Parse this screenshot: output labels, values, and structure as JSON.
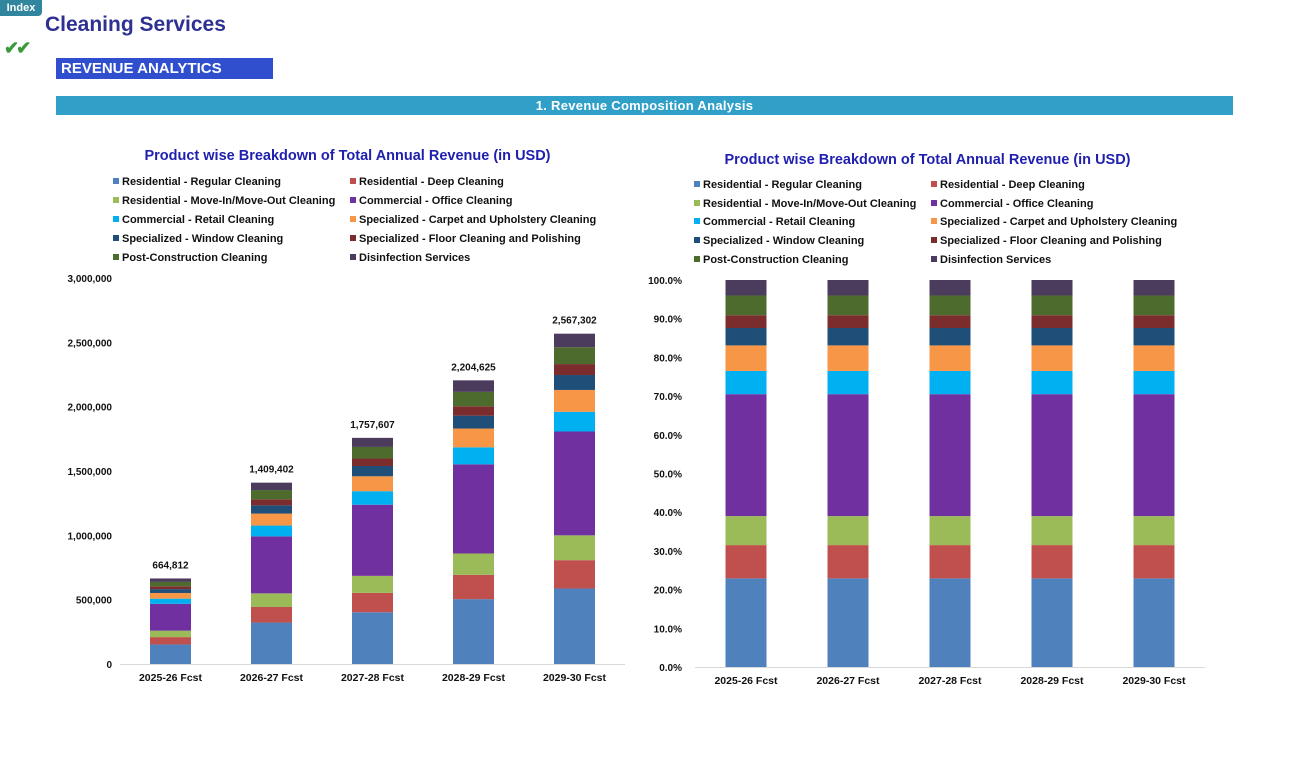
{
  "header": {
    "index_label": "Index",
    "checkmark_icon": "double-check-icon",
    "title": "Cleaning Services",
    "section": "REVENUE ANALYTICS",
    "banner": "1.  Revenue Composition Analysis"
  },
  "colors": {
    "accent": "#2e3192",
    "section_bg": "#2f4fcf",
    "banner_bg": "#31a0c9",
    "series": [
      "#4f81bd",
      "#c0504d",
      "#9bbb59",
      "#7030a0",
      "#00b0f0",
      "#f79646",
      "#1f4e79",
      "#7b2c2c",
      "#4e6b2e",
      "#4b3b5c"
    ]
  },
  "chart_data": [
    {
      "type": "bar",
      "stacked": true,
      "title": "Product wise Breakdown of Total Annual Revenue (in USD)",
      "categories": [
        "2025-26 Fcst",
        "2026-27 Fcst",
        "2027-28 Fcst",
        "2028-29 Fcst",
        "2029-30 Fcst"
      ],
      "totals": [
        664812,
        1409402,
        1757607,
        2204625,
        2567302
      ],
      "total_labels": [
        "664,812",
        "1,409,402",
        "1,757,607",
        "2,204,625",
        "2,567,302"
      ],
      "ylim": [
        0,
        3000000
      ],
      "yticks": [
        "0",
        "500,000",
        "1,000,000",
        "1,500,000",
        "2,000,000",
        "2,500,000",
        "3,000,000"
      ],
      "legend_position": "top",
      "grid": false,
      "series": [
        {
          "name": "Residential - Regular Cleaning",
          "values": [
            152000,
            322000,
            402000,
            504000,
            587000
          ]
        },
        {
          "name": "Residential - Deep Cleaning",
          "values": [
            57000,
            121000,
            151000,
            189000,
            220000
          ]
        },
        {
          "name": "Residential - Move-In/Move-Out Cleaning",
          "values": [
            50000,
            106000,
            132000,
            166000,
            193000
          ]
        },
        {
          "name": "Commercial - Office Cleaning",
          "values": [
            209000,
            443000,
            553000,
            693000,
            807000
          ]
        },
        {
          "name": "Commercial - Retail Cleaning",
          "values": [
            40000,
            84000,
            105000,
            132000,
            153000
          ]
        },
        {
          "name": "Specialized - Carpet and Upholstery Cleaning",
          "values": [
            44000,
            93000,
            116000,
            146000,
            170000
          ]
        },
        {
          "name": "Specialized - Window Cleaning",
          "values": [
            30000,
            64000,
            80000,
            100000,
            116000
          ]
        },
        {
          "name": "Specialized - Floor Cleaning and Polishing",
          "values": [
            22000,
            47000,
            58000,
            73000,
            85000
          ]
        },
        {
          "name": "Post-Construction Cleaning",
          "values": [
            34000,
            72000,
            90000,
            112000,
            131000
          ]
        },
        {
          "name": "Disinfection Services",
          "values": [
            26812,
            57402,
            70607,
            89625,
            105302
          ]
        }
      ]
    },
    {
      "type": "bar",
      "stacked": true,
      "percent": true,
      "title": "Product wise Breakdown of Total Annual Revenue (in USD)",
      "categories": [
        "2025-26 Fcst",
        "2026-27 Fcst",
        "2027-28 Fcst",
        "2028-29 Fcst",
        "2029-30 Fcst"
      ],
      "ylim": [
        0,
        100
      ],
      "yticks": [
        "0.0%",
        "10.0%",
        "20.0%",
        "30.0%",
        "40.0%",
        "50.0%",
        "60.0%",
        "70.0%",
        "80.0%",
        "90.0%",
        "100.0%"
      ],
      "legend_position": "top",
      "grid": false,
      "series": [
        {
          "name": "Residential - Regular Cleaning",
          "values": [
            22.9,
            22.9,
            22.9,
            22.9,
            22.9
          ]
        },
        {
          "name": "Residential - Deep Cleaning",
          "values": [
            8.6,
            8.6,
            8.6,
            8.6,
            8.6
          ]
        },
        {
          "name": "Residential - Move-In/Move-Out Cleaning",
          "values": [
            7.5,
            7.5,
            7.5,
            7.5,
            7.5
          ]
        },
        {
          "name": "Commercial - Office Cleaning",
          "values": [
            31.5,
            31.5,
            31.5,
            31.5,
            31.5
          ]
        },
        {
          "name": "Commercial - Retail Cleaning",
          "values": [
            6.0,
            6.0,
            6.0,
            6.0,
            6.0
          ]
        },
        {
          "name": "Specialized - Carpet and Upholstery Cleaning",
          "values": [
            6.6,
            6.6,
            6.6,
            6.6,
            6.6
          ]
        },
        {
          "name": "Specialized - Window Cleaning",
          "values": [
            4.5,
            4.5,
            4.5,
            4.5,
            4.5
          ]
        },
        {
          "name": "Specialized - Floor Cleaning and Polishing",
          "values": [
            3.3,
            3.3,
            3.3,
            3.3,
            3.3
          ]
        },
        {
          "name": "Post-Construction Cleaning",
          "values": [
            5.1,
            5.1,
            5.1,
            5.1,
            5.1
          ]
        },
        {
          "name": "Disinfection Services",
          "values": [
            4.0,
            4.0,
            4.0,
            4.0,
            4.0
          ]
        }
      ]
    }
  ]
}
